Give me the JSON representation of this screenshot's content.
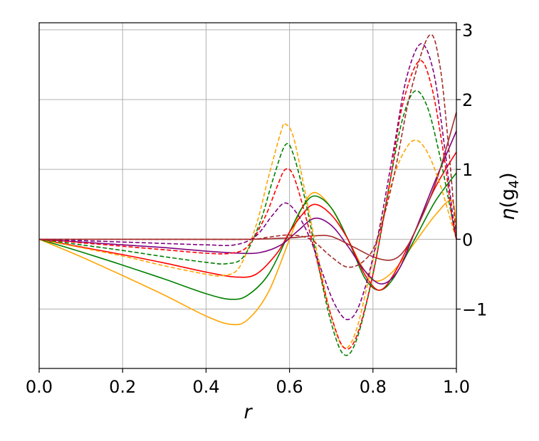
{
  "chart_data": {
    "type": "line",
    "xlabel": "r",
    "ylabel_main": "η",
    "ylabel_arg": "(g",
    "ylabel_sub": "4",
    "ylabel_close": ")",
    "xlim": [
      0.0,
      1.0
    ],
    "ylim": [
      -1.85,
      3.1
    ],
    "grid": true,
    "y_axis_side": "right",
    "x_ticks": [
      0.0,
      0.2,
      0.4,
      0.6,
      0.8,
      1.0
    ],
    "x_tick_labels": [
      "0.0",
      "0.2",
      "0.4",
      "0.6",
      "0.8",
      "1.0"
    ],
    "y_ticks": [
      -1,
      0,
      1,
      2,
      3
    ],
    "y_tick_labels": [
      "−1",
      "0",
      "1",
      "2",
      "3"
    ],
    "series": [
      {
        "color": "#ffa500",
        "dash": "solid",
        "points": [
          [
            0,
            0
          ],
          [
            0.1,
            -0.25
          ],
          [
            0.2,
            -0.52
          ],
          [
            0.3,
            -0.8
          ],
          [
            0.4,
            -1.1
          ],
          [
            0.46,
            -1.22
          ],
          [
            0.5,
            -1.15
          ],
          [
            0.55,
            -0.75
          ],
          [
            0.6,
            0.0
          ],
          [
            0.63,
            0.45
          ],
          [
            0.66,
            0.67
          ],
          [
            0.7,
            0.45
          ],
          [
            0.74,
            0.0
          ],
          [
            0.78,
            -0.45
          ],
          [
            0.81,
            -0.6
          ],
          [
            0.85,
            -0.45
          ],
          [
            0.9,
            -0.05
          ],
          [
            0.95,
            0.35
          ],
          [
            0.99,
            0.55
          ],
          [
            1.0,
            0.05
          ]
        ]
      },
      {
        "color": "#008000",
        "dash": "solid",
        "points": [
          [
            0,
            0
          ],
          [
            0.1,
            -0.18
          ],
          [
            0.2,
            -0.37
          ],
          [
            0.3,
            -0.57
          ],
          [
            0.4,
            -0.78
          ],
          [
            0.46,
            -0.86
          ],
          [
            0.5,
            -0.8
          ],
          [
            0.55,
            -0.5
          ],
          [
            0.6,
            0.1
          ],
          [
            0.63,
            0.45
          ],
          [
            0.66,
            0.62
          ],
          [
            0.7,
            0.45
          ],
          [
            0.74,
            0.0
          ],
          [
            0.78,
            -0.55
          ],
          [
            0.815,
            -0.73
          ],
          [
            0.85,
            -0.55
          ],
          [
            0.9,
            0.0
          ],
          [
            0.95,
            0.55
          ],
          [
            1.0,
            0.95
          ]
        ]
      },
      {
        "color": "#ff0000",
        "dash": "solid",
        "points": [
          [
            0,
            0
          ],
          [
            0.1,
            -0.11
          ],
          [
            0.2,
            -0.22
          ],
          [
            0.3,
            -0.34
          ],
          [
            0.4,
            -0.47
          ],
          [
            0.47,
            -0.54
          ],
          [
            0.52,
            -0.5
          ],
          [
            0.57,
            -0.2
          ],
          [
            0.6,
            0.1
          ],
          [
            0.63,
            0.35
          ],
          [
            0.66,
            0.5
          ],
          [
            0.7,
            0.35
          ],
          [
            0.74,
            0.0
          ],
          [
            0.78,
            -0.5
          ],
          [
            0.815,
            -0.73
          ],
          [
            0.85,
            -0.5
          ],
          [
            0.9,
            0.1
          ],
          [
            0.95,
            0.75
          ],
          [
            1.0,
            1.25
          ]
        ]
      },
      {
        "color": "#800080",
        "dash": "solid",
        "points": [
          [
            0,
            0
          ],
          [
            0.1,
            -0.04
          ],
          [
            0.2,
            -0.08
          ],
          [
            0.3,
            -0.12
          ],
          [
            0.4,
            -0.17
          ],
          [
            0.48,
            -0.2
          ],
          [
            0.53,
            -0.19
          ],
          [
            0.58,
            -0.08
          ],
          [
            0.62,
            0.12
          ],
          [
            0.66,
            0.3
          ],
          [
            0.7,
            0.2
          ],
          [
            0.74,
            -0.1
          ],
          [
            0.78,
            -0.45
          ],
          [
            0.82,
            -0.64
          ],
          [
            0.86,
            -0.45
          ],
          [
            0.9,
            0.1
          ],
          [
            0.95,
            0.85
          ],
          [
            1.0,
            1.55
          ]
        ]
      },
      {
        "color": "#a52a2a",
        "dash": "solid",
        "points": [
          [
            0,
            0
          ],
          [
            0.1,
            0.0
          ],
          [
            0.3,
            0.0
          ],
          [
            0.5,
            0.0
          ],
          [
            0.6,
            0.02
          ],
          [
            0.66,
            0.05
          ],
          [
            0.7,
            0.04
          ],
          [
            0.75,
            -0.1
          ],
          [
            0.8,
            -0.25
          ],
          [
            0.84,
            -0.3
          ],
          [
            0.87,
            -0.2
          ],
          [
            0.9,
            0.1
          ],
          [
            0.95,
            0.8
          ],
          [
            1.0,
            1.82
          ]
        ]
      },
      {
        "color": "#ffa500",
        "dash": "dashed",
        "points": [
          [
            0,
            0
          ],
          [
            0.1,
            -0.12
          ],
          [
            0.2,
            -0.24
          ],
          [
            0.3,
            -0.38
          ],
          [
            0.4,
            -0.5
          ],
          [
            0.44,
            -0.52
          ],
          [
            0.48,
            -0.4
          ],
          [
            0.52,
            0.2
          ],
          [
            0.55,
            0.9
          ],
          [
            0.58,
            1.55
          ],
          [
            0.59,
            1.65
          ],
          [
            0.61,
            1.45
          ],
          [
            0.64,
            0.6
          ],
          [
            0.67,
            -0.3
          ],
          [
            0.7,
            -1.1
          ],
          [
            0.73,
            -1.55
          ],
          [
            0.76,
            -1.3
          ],
          [
            0.8,
            -0.3
          ],
          [
            0.84,
            0.7
          ],
          [
            0.87,
            1.2
          ],
          [
            0.9,
            1.42
          ],
          [
            0.93,
            1.25
          ],
          [
            0.96,
            0.8
          ],
          [
            0.99,
            0.2
          ],
          [
            1.0,
            0.0
          ]
        ]
      },
      {
        "color": "#008000",
        "dash": "dashed",
        "points": [
          [
            0,
            0
          ],
          [
            0.1,
            -0.08
          ],
          [
            0.2,
            -0.16
          ],
          [
            0.3,
            -0.25
          ],
          [
            0.4,
            -0.33
          ],
          [
            0.45,
            -0.35
          ],
          [
            0.49,
            -0.25
          ],
          [
            0.53,
            0.25
          ],
          [
            0.56,
            0.85
          ],
          [
            0.59,
            1.35
          ],
          [
            0.61,
            1.2
          ],
          [
            0.64,
            0.5
          ],
          [
            0.67,
            -0.4
          ],
          [
            0.7,
            -1.2
          ],
          [
            0.73,
            -1.65
          ],
          [
            0.76,
            -1.45
          ],
          [
            0.8,
            -0.5
          ],
          [
            0.84,
            0.8
          ],
          [
            0.87,
            1.7
          ],
          [
            0.9,
            2.12
          ],
          [
            0.93,
            1.9
          ],
          [
            0.96,
            1.2
          ],
          [
            0.99,
            0.3
          ],
          [
            1.0,
            0.0
          ]
        ]
      },
      {
        "color": "#ff0000",
        "dash": "dashed",
        "points": [
          [
            0,
            0
          ],
          [
            0.1,
            -0.05
          ],
          [
            0.2,
            -0.1
          ],
          [
            0.3,
            -0.15
          ],
          [
            0.4,
            -0.2
          ],
          [
            0.46,
            -0.2
          ],
          [
            0.5,
            -0.1
          ],
          [
            0.54,
            0.3
          ],
          [
            0.57,
            0.75
          ],
          [
            0.59,
            1.0
          ],
          [
            0.61,
            0.9
          ],
          [
            0.64,
            0.3
          ],
          [
            0.67,
            -0.4
          ],
          [
            0.7,
            -1.1
          ],
          [
            0.73,
            -1.55
          ],
          [
            0.76,
            -1.4
          ],
          [
            0.8,
            -0.5
          ],
          [
            0.84,
            0.8
          ],
          [
            0.87,
            1.9
          ],
          [
            0.91,
            2.55
          ],
          [
            0.94,
            2.2
          ],
          [
            0.97,
            1.2
          ],
          [
            0.99,
            0.3
          ],
          [
            1.0,
            0.0
          ]
        ]
      },
      {
        "color": "#800080",
        "dash": "dashed",
        "points": [
          [
            0,
            0
          ],
          [
            0.1,
            -0.02
          ],
          [
            0.2,
            -0.04
          ],
          [
            0.3,
            -0.06
          ],
          [
            0.4,
            -0.08
          ],
          [
            0.47,
            -0.08
          ],
          [
            0.52,
            0.05
          ],
          [
            0.56,
            0.35
          ],
          [
            0.59,
            0.52
          ],
          [
            0.62,
            0.35
          ],
          [
            0.65,
            0.0
          ],
          [
            0.68,
            -0.5
          ],
          [
            0.71,
            -0.95
          ],
          [
            0.74,
            -1.15
          ],
          [
            0.77,
            -0.9
          ],
          [
            0.81,
            0.0
          ],
          [
            0.85,
            1.3
          ],
          [
            0.88,
            2.3
          ],
          [
            0.915,
            2.8
          ],
          [
            0.945,
            2.4
          ],
          [
            0.97,
            1.4
          ],
          [
            0.99,
            0.4
          ],
          [
            1.0,
            0.0
          ]
        ]
      },
      {
        "color": "#a52a2a",
        "dash": "dashed",
        "points": [
          [
            0,
            0
          ],
          [
            0.1,
            0.0
          ],
          [
            0.3,
            0.0
          ],
          [
            0.5,
            0.0
          ],
          [
            0.55,
            0.03
          ],
          [
            0.6,
            0.06
          ],
          [
            0.65,
            0.0
          ],
          [
            0.7,
            -0.25
          ],
          [
            0.74,
            -0.4
          ],
          [
            0.78,
            -0.3
          ],
          [
            0.81,
            0.0
          ],
          [
            0.85,
            0.9
          ],
          [
            0.89,
            2.1
          ],
          [
            0.935,
            2.92
          ],
          [
            0.96,
            2.5
          ],
          [
            0.98,
            1.4
          ],
          [
            1.0,
            0.0
          ]
        ]
      }
    ]
  }
}
